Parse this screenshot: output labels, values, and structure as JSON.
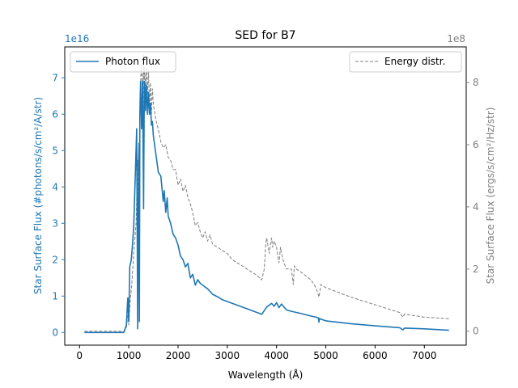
{
  "chart_data": {
    "type": "line",
    "title": "SED for B7",
    "xlabel": "Wavelength (Å)",
    "xlim": [
      -300,
      7850
    ],
    "x_ticks": [
      0,
      1000,
      2000,
      3000,
      4000,
      5000,
      6000,
      7000
    ],
    "x_tick_labels": [
      "0",
      "1000",
      "2000",
      "3000",
      "4000",
      "5000",
      "6000",
      "7000"
    ],
    "grid": false,
    "left_axis": {
      "label": "Star Surface Flux (#photons/s/cm²/A/str)",
      "color": "#1f77b4",
      "exponent_label": "1e16",
      "ylim": [
        -0.35,
        7.85
      ],
      "ticks": [
        0,
        1,
        2,
        3,
        4,
        5,
        6,
        7
      ],
      "tick_labels": [
        "0",
        "1",
        "2",
        "3",
        "4",
        "5",
        "6",
        "7"
      ]
    },
    "right_axis": {
      "label": "Star Surface Flux (ergs/s/cm²/Hz/str)",
      "color": "#808080",
      "exponent_label": "1e8",
      "ylim": [
        -0.45,
        9.15
      ],
      "ticks": [
        0,
        2,
        4,
        6,
        8
      ],
      "tick_labels": [
        "0",
        "2",
        "4",
        "6",
        "8"
      ]
    },
    "legends": [
      {
        "label": "Photon flux",
        "placement": "upper-left",
        "series": "photon"
      },
      {
        "label": "Energy distr.",
        "placement": "upper-right",
        "series": "energy"
      }
    ],
    "series": [
      {
        "name": "Photon flux",
        "axis": "left",
        "color": "#1f77b4",
        "style": "solid",
        "x": [
          100,
          500,
          900,
          950,
          980,
          1000,
          1020,
          1050,
          1080,
          1100,
          1130,
          1160,
          1180,
          1190,
          1200,
          1210,
          1215,
          1225,
          1240,
          1260,
          1280,
          1300,
          1310,
          1320,
          1340,
          1360,
          1380,
          1400,
          1420,
          1440,
          1460,
          1480,
          1500,
          1550,
          1600,
          1650,
          1700,
          1720,
          1750,
          1780,
          1800,
          1850,
          1900,
          1950,
          2000,
          2050,
          2100,
          2150,
          2200,
          2250,
          2300,
          2350,
          2400,
          2450,
          2500,
          2600,
          2700,
          2800,
          2900,
          3000,
          3200,
          3400,
          3600,
          3700,
          3750,
          3800,
          3850,
          3900,
          3950,
          4000,
          4050,
          4100,
          4150,
          4200,
          4300,
          4400,
          4500,
          4700,
          4800,
          4850,
          4861,
          4870,
          5000,
          5500,
          6000,
          6500,
          6563,
          6600,
          7000,
          7500
        ],
        "y": [
          0,
          0,
          0,
          0.2,
          0.95,
          0.3,
          1.8,
          2.0,
          2.5,
          2.9,
          4.2,
          5.6,
          0.1,
          2.0,
          4.7,
          5.2,
          0.3,
          6.0,
          6.9,
          5.6,
          6.9,
          3.4,
          5.9,
          6.9,
          6.1,
          6.8,
          6.0,
          6.6,
          6.0,
          6.3,
          5.7,
          5.8,
          5.4,
          4.9,
          4.4,
          4.3,
          3.6,
          3.9,
          3.3,
          3.7,
          3.2,
          3.0,
          2.7,
          2.6,
          2.4,
          2.1,
          2.0,
          1.8,
          1.9,
          1.5,
          1.6,
          1.3,
          1.45,
          1.35,
          1.3,
          1.2,
          1.05,
          0.98,
          0.9,
          0.85,
          0.75,
          0.65,
          0.55,
          0.5,
          0.6,
          0.7,
          0.75,
          0.8,
          0.72,
          0.82,
          0.68,
          0.78,
          0.7,
          0.62,
          0.58,
          0.55,
          0.52,
          0.45,
          0.42,
          0.4,
          0.28,
          0.38,
          0.32,
          0.24,
          0.18,
          0.13,
          0.07,
          0.12,
          0.1,
          0.06
        ]
      },
      {
        "name": "Energy distr.",
        "axis": "right",
        "color": "#808080",
        "style": "dashed",
        "x": [
          100,
          500,
          900,
          950,
          980,
          1000,
          1030,
          1060,
          1100,
          1150,
          1180,
          1190,
          1200,
          1210,
          1215,
          1230,
          1260,
          1280,
          1300,
          1310,
          1320,
          1340,
          1360,
          1380,
          1400,
          1420,
          1440,
          1460,
          1480,
          1500,
          1550,
          1600,
          1650,
          1700,
          1750,
          1800,
          1850,
          1900,
          1950,
          2000,
          2050,
          2100,
          2150,
          2200,
          2250,
          2300,
          2350,
          2400,
          2450,
          2500,
          2550,
          2600,
          2650,
          2700,
          2800,
          2900,
          3000,
          3100,
          3200,
          3400,
          3600,
          3700,
          3750,
          3780,
          3800,
          3850,
          3900,
          3920,
          3950,
          4000,
          4050,
          4080,
          4100,
          4150,
          4200,
          4300,
          4340,
          4360,
          4400,
          4500,
          4700,
          4800,
          4861,
          4900,
          5000,
          5500,
          6000,
          6500,
          6563,
          6600,
          7000,
          7500
        ],
        "y": [
          0,
          0,
          0,
          0.1,
          0.5,
          0.2,
          1.0,
          1.5,
          2.5,
          3.5,
          5.5,
          4.0,
          5.5,
          6.0,
          1.0,
          7.5,
          8.8,
          7.0,
          8.9,
          5.5,
          8.5,
          7.7,
          8.6,
          7.6,
          8.4,
          7.2,
          8.0,
          7.0,
          7.8,
          7.3,
          6.8,
          6.5,
          6.1,
          5.9,
          6.0,
          5.6,
          5.5,
          5.2,
          5.2,
          4.7,
          4.9,
          4.5,
          4.7,
          4.3,
          4.1,
          3.8,
          3.4,
          3.5,
          3.2,
          3.0,
          3.2,
          2.9,
          3.1,
          2.8,
          2.7,
          2.6,
          2.5,
          2.3,
          2.2,
          2.0,
          1.8,
          1.65,
          2.0,
          2.8,
          3.0,
          2.5,
          3.0,
          2.7,
          2.9,
          2.7,
          2.2,
          2.7,
          2.5,
          2.2,
          2.0,
          2.0,
          1.5,
          2.1,
          2.0,
          1.9,
          1.65,
          1.4,
          1.1,
          1.5,
          1.4,
          1.1,
          0.85,
          0.6,
          0.45,
          0.55,
          0.45,
          0.4
        ]
      }
    ]
  }
}
